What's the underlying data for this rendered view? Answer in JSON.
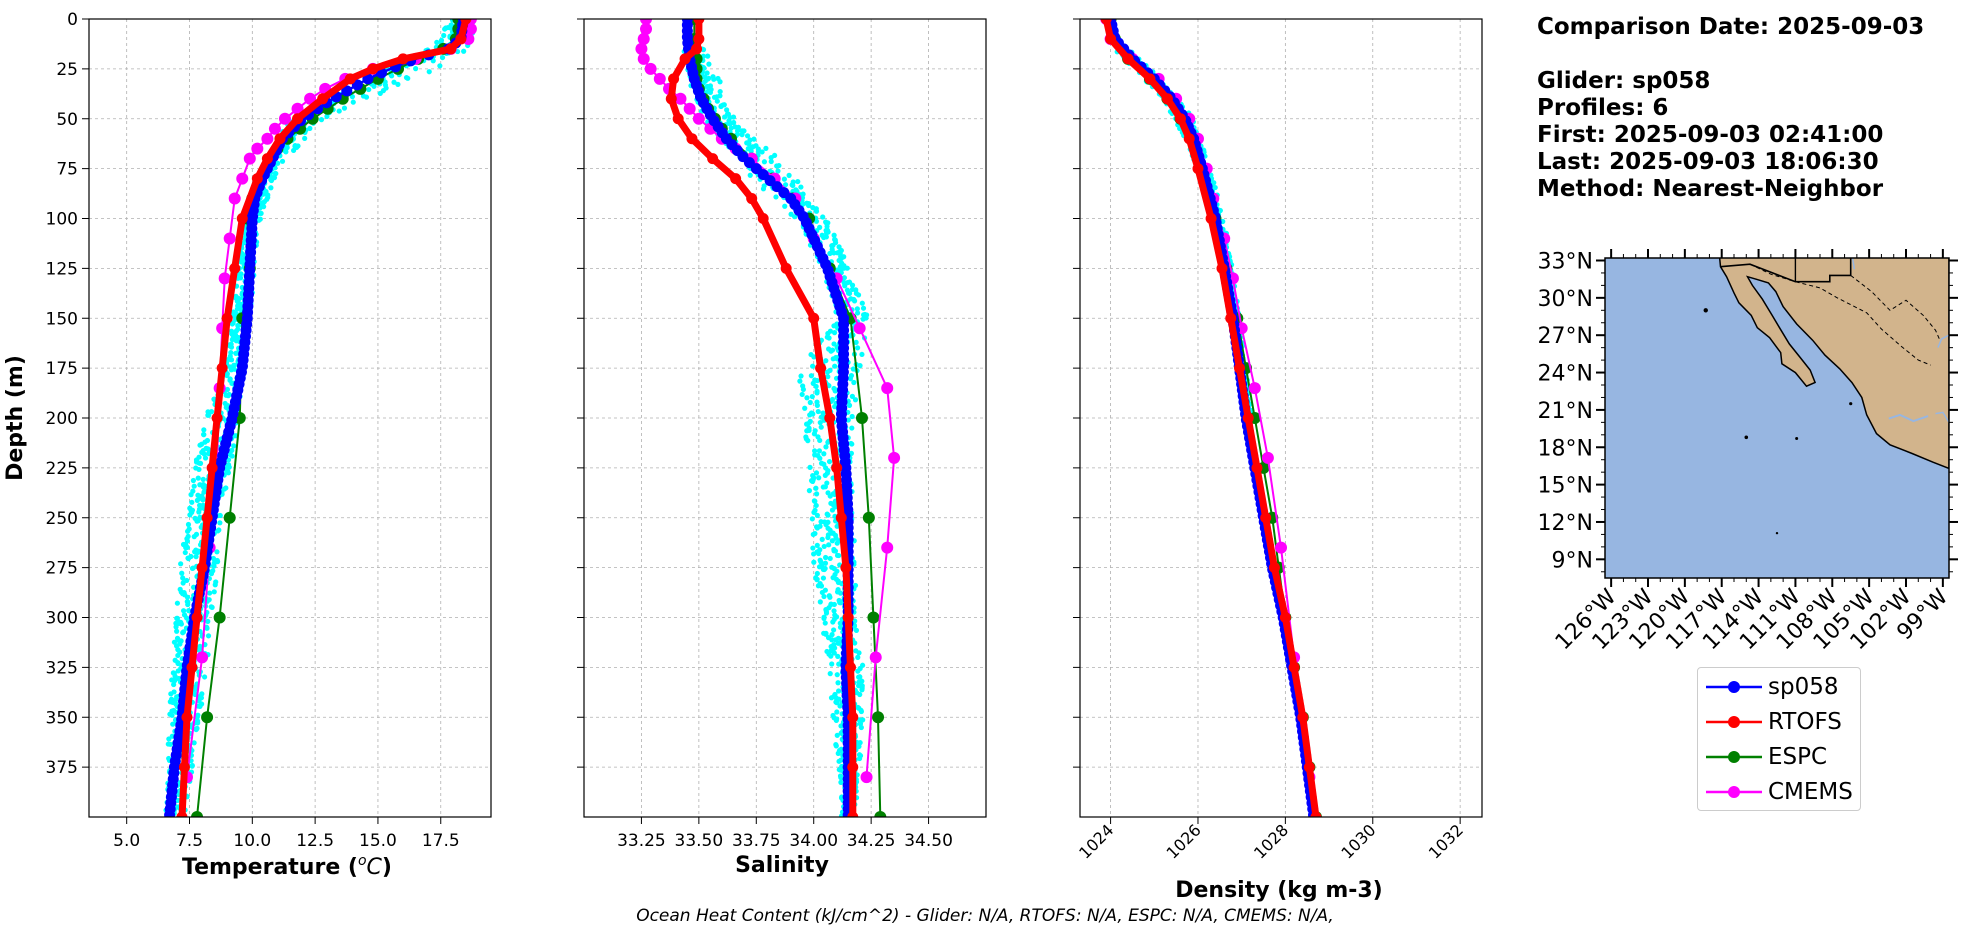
{
  "header": {
    "comparison_date": "Comparison Date: 2025-09-03",
    "glider": "Glider: sp058",
    "profiles": "Profiles: 6",
    "first": "First: 2025-09-03 02:41:00",
    "last": "Last: 2025-09-03 18:06:30",
    "method": "Method: Nearest-Neighbor"
  },
  "footer": "Ocean Heat Content (kJ/cm^2) - Glider: N/A,  RTOFS: N/A,  ESPC: N/A,  CMEMS: N/A,",
  "legend": [
    {
      "name": "sp058",
      "color": "#0000ff"
    },
    {
      "name": "RTOFS",
      "color": "#ff0000"
    },
    {
      "name": "ESPC",
      "color": "#008000"
    },
    {
      "name": "CMEMS",
      "color": "#ff00ff"
    }
  ],
  "colors": {
    "glider_raw": "#00ffff",
    "land": "#d2b48c",
    "ocean": "#97b6e1"
  },
  "chart_data": [
    {
      "type": "line",
      "xlabel": "Temperature ($^oC$)",
      "ylabel": "Depth (m)",
      "xlim": [
        3.5,
        19.5
      ],
      "ylim": [
        400,
        0
      ],
      "xticks": [
        "5.0",
        "7.5",
        "10.0",
        "12.5",
        "15.0",
        "17.5"
      ],
      "xtick_values": [
        5,
        7.5,
        10,
        12.5,
        15,
        17.5
      ],
      "yticks": [
        "0",
        "25",
        "50",
        "75",
        "100",
        "125",
        "150",
        "175",
        "200",
        "225",
        "250",
        "275",
        "300",
        "325",
        "350",
        "375"
      ],
      "ytick_values": [
        0,
        25,
        50,
        75,
        100,
        125,
        150,
        175,
        200,
        225,
        250,
        275,
        300,
        325,
        350,
        375
      ],
      "grid": true,
      "series": [
        {
          "name": "sp058",
          "depth": [
            0,
            10,
            15,
            20,
            25,
            30,
            40,
            50,
            60,
            70,
            80,
            90,
            100,
            125,
            150,
            175,
            200,
            225,
            250,
            275,
            300,
            325,
            350,
            375,
            400
          ],
          "values": [
            18.4,
            18.3,
            17.8,
            16.5,
            15.5,
            14.6,
            13.2,
            12.0,
            11.2,
            10.8,
            10.4,
            10.1,
            10.0,
            9.9,
            9.8,
            9.6,
            9.2,
            8.7,
            8.4,
            8.1,
            7.7,
            7.4,
            7.2,
            6.9,
            6.7
          ]
        },
        {
          "name": "RTOFS",
          "depth": [
            0,
            10,
            15,
            20,
            25,
            30,
            40,
            50,
            60,
            70,
            80,
            100,
            125,
            150,
            175,
            200,
            225,
            250,
            275,
            300,
            325,
            350,
            375,
            400
          ],
          "values": [
            18.5,
            18.3,
            17.9,
            16.0,
            14.8,
            13.9,
            12.8,
            11.8,
            11.1,
            10.6,
            10.2,
            9.6,
            9.3,
            9.0,
            8.8,
            8.6,
            8.4,
            8.2,
            8.0,
            7.8,
            7.6,
            7.4,
            7.3,
            7.2
          ]
        },
        {
          "name": "ESPC",
          "depth": [
            0,
            5,
            10,
            15,
            20,
            25,
            30,
            35,
            40,
            45,
            50,
            55,
            60,
            65,
            70,
            80,
            90,
            100,
            125,
            150,
            200,
            250,
            300,
            350,
            400
          ],
          "values": [
            18.2,
            18.2,
            18.1,
            17.6,
            16.6,
            15.8,
            15.0,
            14.3,
            13.6,
            13.0,
            12.4,
            11.9,
            11.4,
            11.0,
            10.7,
            10.3,
            10.0,
            9.8,
            9.9,
            9.6,
            9.5,
            9.1,
            8.7,
            8.2,
            7.8
          ]
        },
        {
          "name": "CMEMS",
          "depth": [
            0,
            5,
            10,
            15,
            20,
            25,
            30,
            35,
            40,
            45,
            50,
            55,
            60,
            65,
            70,
            80,
            90,
            110,
            130,
            155,
            185,
            220,
            265,
            320,
            380
          ],
          "values": [
            18.7,
            18.7,
            18.6,
            17.9,
            16.5,
            14.8,
            13.7,
            12.9,
            12.3,
            11.8,
            11.3,
            10.9,
            10.6,
            10.2,
            9.9,
            9.6,
            9.3,
            9.1,
            8.9,
            8.8,
            8.7,
            8.6,
            8.3,
            8.0,
            7.4
          ]
        }
      ],
      "raw_glider": {
        "name": "sp058 profiles",
        "depth": [
          0,
          15,
          25,
          50,
          75,
          100,
          125,
          150,
          175,
          200,
          225,
          250,
          275,
          300,
          325,
          350,
          375,
          400
        ],
        "min": [
          17.9,
          16.8,
          14.6,
          11.5,
          10.3,
          9.7,
          9.4,
          9.2,
          8.9,
          8.1,
          7.7,
          7.4,
          7.1,
          6.9,
          6.8,
          6.7,
          6.6,
          6.5
        ],
        "max": [
          18.9,
          18.6,
          17.2,
          12.8,
          11.0,
          10.3,
          10.1,
          9.9,
          9.6,
          9.5,
          9.1,
          8.8,
          8.6,
          8.4,
          8.2,
          7.9,
          7.6,
          7.3
        ]
      }
    },
    {
      "type": "line",
      "xlabel": "Salinity",
      "xlim": [
        33.0,
        34.75
      ],
      "ylim": [
        400,
        0
      ],
      "xticks": [
        "33.25",
        "33.50",
        "33.75",
        "34.00",
        "34.25",
        "34.50"
      ],
      "xtick_values": [
        33.25,
        33.5,
        33.75,
        34.0,
        34.25,
        34.5
      ],
      "grid": true,
      "series": [
        {
          "name": "sp058",
          "depth": [
            0,
            10,
            20,
            30,
            40,
            50,
            60,
            70,
            80,
            90,
            100,
            110,
            125,
            150,
            175,
            200,
            225,
            250,
            275,
            300,
            325,
            350,
            375,
            400
          ],
          "values": [
            33.45,
            33.45,
            33.46,
            33.48,
            33.51,
            33.56,
            33.62,
            33.7,
            33.8,
            33.9,
            33.96,
            34.0,
            34.06,
            34.13,
            34.13,
            34.12,
            34.14,
            34.15,
            34.15,
            34.15,
            34.14,
            34.15,
            34.15,
            34.15
          ]
        },
        {
          "name": "RTOFS",
          "depth": [
            0,
            10,
            15,
            20,
            30,
            40,
            50,
            60,
            70,
            80,
            90,
            100,
            125,
            150,
            175,
            200,
            225,
            250,
            275,
            300,
            325,
            350,
            375,
            400
          ],
          "values": [
            33.5,
            33.5,
            33.49,
            33.44,
            33.39,
            33.38,
            33.41,
            33.47,
            33.56,
            33.66,
            33.73,
            33.78,
            33.88,
            34.0,
            34.03,
            34.07,
            34.1,
            34.12,
            34.14,
            34.15,
            34.16,
            34.17,
            34.17,
            34.17
          ]
        },
        {
          "name": "ESPC",
          "depth": [
            0,
            10,
            15,
            20,
            25,
            30,
            35,
            40,
            45,
            50,
            55,
            60,
            70,
            80,
            90,
            100,
            125,
            150,
            200,
            250,
            300,
            350,
            400
          ],
          "values": [
            33.48,
            33.48,
            33.48,
            33.49,
            33.49,
            33.49,
            33.5,
            33.52,
            33.54,
            33.57,
            33.6,
            33.64,
            33.73,
            33.82,
            33.91,
            33.98,
            34.07,
            34.16,
            34.21,
            34.24,
            34.26,
            34.28,
            34.29
          ]
        },
        {
          "name": "CMEMS",
          "depth": [
            0,
            5,
            10,
            15,
            20,
            25,
            30,
            35,
            40,
            45,
            50,
            55,
            60,
            65,
            70,
            80,
            90,
            110,
            130,
            155,
            185,
            220,
            265,
            320,
            380
          ],
          "values": [
            33.27,
            33.27,
            33.26,
            33.25,
            33.26,
            33.29,
            33.33,
            33.37,
            33.42,
            33.46,
            33.5,
            33.55,
            33.6,
            33.66,
            33.73,
            33.83,
            33.92,
            34.0,
            34.1,
            34.2,
            34.32,
            34.35,
            34.32,
            34.27,
            34.23
          ]
        }
      ],
      "raw_glider": {
        "name": "sp058 profiles",
        "depth": [
          15,
          25,
          50,
          75,
          100,
          125,
          150,
          175,
          200,
          225,
          250,
          275,
          300,
          325,
          350,
          375,
          400
        ],
        "min": [
          33.42,
          33.44,
          33.52,
          33.7,
          33.93,
          34.04,
          34.1,
          33.93,
          33.96,
          33.97,
          33.99,
          34.0,
          34.03,
          34.07,
          34.08,
          34.11,
          34.12
        ],
        "max": [
          33.55,
          33.58,
          33.66,
          33.9,
          34.06,
          34.16,
          34.24,
          34.2,
          34.17,
          34.17,
          34.18,
          34.18,
          34.2,
          34.22,
          34.22,
          34.2,
          34.18
        ]
      }
    },
    {
      "type": "line",
      "xlabel": "Density (kg m-3)",
      "xlim": [
        1023.3,
        1032.5
      ],
      "ylim": [
        400,
        0
      ],
      "xticks": [
        "1024",
        "1026",
        "1028",
        "1030",
        "1032"
      ],
      "xtick_values": [
        1024,
        1026,
        1028,
        1030,
        1032
      ],
      "grid": true,
      "series": [
        {
          "name": "sp058",
          "depth": [
            0,
            10,
            20,
            30,
            40,
            50,
            60,
            75,
            100,
            125,
            150,
            175,
            200,
            225,
            250,
            275,
            300,
            325,
            350,
            375,
            400
          ],
          "values": [
            1024.0,
            1024.1,
            1024.5,
            1025.0,
            1025.4,
            1025.7,
            1025.9,
            1026.1,
            1026.4,
            1026.6,
            1026.8,
            1026.95,
            1027.1,
            1027.3,
            1027.5,
            1027.7,
            1027.95,
            1028.15,
            1028.35,
            1028.5,
            1028.65
          ]
        },
        {
          "name": "RTOFS",
          "depth": [
            0,
            10,
            20,
            30,
            40,
            50,
            60,
            75,
            100,
            125,
            150,
            175,
            200,
            225,
            250,
            275,
            300,
            325,
            350,
            375,
            400
          ],
          "values": [
            1023.9,
            1024.0,
            1024.4,
            1024.9,
            1025.3,
            1025.6,
            1025.8,
            1026.0,
            1026.3,
            1026.55,
            1026.75,
            1026.95,
            1027.15,
            1027.35,
            1027.55,
            1027.75,
            1028.0,
            1028.2,
            1028.4,
            1028.55,
            1028.7
          ]
        },
        {
          "name": "ESPC",
          "depth": [
            0,
            10,
            20,
            30,
            40,
            50,
            60,
            75,
            100,
            125,
            150,
            175,
            200,
            225,
            250,
            275,
            300,
            325,
            350,
            375,
            400
          ],
          "values": [
            1024.0,
            1024.1,
            1024.4,
            1024.9,
            1025.3,
            1025.6,
            1025.85,
            1026.05,
            1026.4,
            1026.65,
            1026.9,
            1027.1,
            1027.3,
            1027.5,
            1027.7,
            1027.85,
            1028.0,
            1028.2,
            1028.4,
            1028.55,
            1028.7
          ]
        },
        {
          "name": "CMEMS",
          "depth": [
            0,
            10,
            20,
            30,
            40,
            50,
            60,
            75,
            90,
            110,
            130,
            155,
            185,
            220,
            265,
            320,
            380
          ],
          "values": [
            1023.9,
            1024.0,
            1024.5,
            1025.1,
            1025.5,
            1025.8,
            1026.0,
            1026.2,
            1026.35,
            1026.6,
            1026.8,
            1027.0,
            1027.3,
            1027.6,
            1027.9,
            1028.2,
            1028.55
          ]
        }
      ],
      "raw_glider": {
        "name": "sp058 profiles",
        "depth": [
          15,
          25,
          50,
          75,
          100,
          125,
          150,
          175,
          200
        ],
        "min": [
          1024.1,
          1024.6,
          1025.5,
          1026.0,
          1026.3,
          1026.55,
          1026.75,
          1026.9,
          1027.05
        ],
        "max": [
          1024.4,
          1025.0,
          1025.9,
          1026.3,
          1026.6,
          1026.8,
          1026.95,
          1027.1,
          1027.25
        ]
      }
    }
  ],
  "map": {
    "lat_ticks": [
      "33°N",
      "30°N",
      "27°N",
      "24°N",
      "21°N",
      "18°N",
      "15°N",
      "12°N",
      "9°N"
    ],
    "lat_values": [
      33,
      30,
      27,
      24,
      21,
      18,
      15,
      12,
      9
    ],
    "lon_ticks": [
      "126°W",
      "123°W",
      "120°W",
      "117°W",
      "114°W",
      "111°W",
      "108°W",
      "105°W",
      "102°W",
      "99°W"
    ],
    "lon_values": [
      -126,
      -123,
      -120,
      -117,
      -114,
      -111,
      -108,
      -105,
      -102,
      -99
    ],
    "lon_range": [
      -126.5,
      -98.5
    ],
    "lat_range": [
      7.5,
      33.2
    ]
  }
}
